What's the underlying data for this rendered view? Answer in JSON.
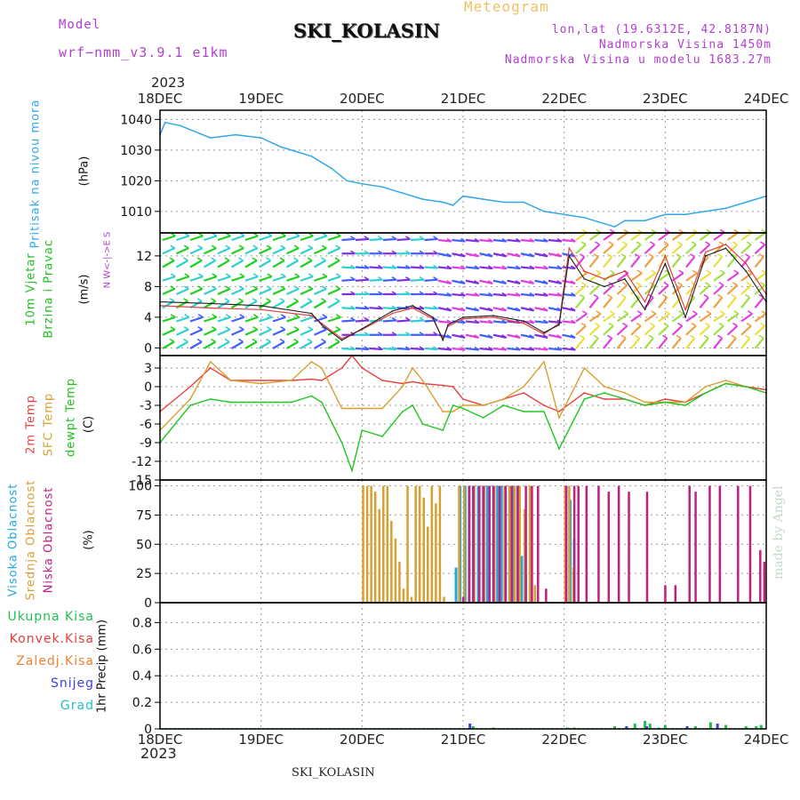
{
  "header": {
    "model_label": "Model",
    "model_name": "wrf−nmm_v3.9.1  e1km",
    "station": "SKI_KOLASIN",
    "meteogram": "Meteogram",
    "lonlat": "lon,lat (19.6312E, 42.8187N)",
    "altitude": "Nadmorska Visina 1450m",
    "model_altitude": "Nadmorska Visina u modelu 1683.27m"
  },
  "footer": {
    "station": "SKI_KOLASIN",
    "made_by": "made by Angel"
  },
  "time_axis": {
    "year": "2023",
    "ticks": [
      "18DEC",
      "19DEC",
      "20DEC",
      "21DEC",
      "22DEC",
      "23DEC",
      "24DEC"
    ]
  },
  "colors": {
    "pressure": "#30a8e8",
    "temp2m": "#e84040",
    "sfc_temp": "#d8a030",
    "dewpt": "#20c820",
    "cloud_high": "#20a8e0",
    "cloud_mid": "#d8a030",
    "cloud_low": "#c02080",
    "wind_speed": "#202020",
    "wind_gust": "#e04040",
    "precip_total": "#20c050",
    "precip_conv": "#e04040",
    "precip_frz": "#f08030",
    "precip_snow": "#4040e0",
    "precip_graupel": "#20c0c0"
  },
  "panels": {
    "pressure": {
      "label": "Pritisak na nivou mora",
      "unit": "(hPa)"
    },
    "wind": {
      "label1": "10m Vjetar",
      "label2": "Brzina i Pravac",
      "unit": "(m/s)",
      "compass": "N  W<-|->E  S"
    },
    "temp": {
      "label1": "2m Temp",
      "label2": "SFC Temp",
      "label3": "dewpt Temp",
      "unit": "(C)"
    },
    "cloud": {
      "label1": "Visoka Oblacnost",
      "label2": "Srednja Oblacnost",
      "label3": "Niska Oblacnost",
      "unit": "(%)"
    },
    "precip": {
      "label": "1hr Precip (mm)",
      "legend": [
        "Ukupna Kisa",
        "Konvek.Kisa",
        "Zaledj.Kisa",
        "Snijeg",
        "Grad"
      ]
    }
  },
  "chart_data": [
    {
      "type": "line",
      "title": "Pritisak na nivou mora",
      "ylabel": "(hPa)",
      "ylim": [
        1003,
        1043
      ],
      "yticks": [
        1010,
        1020,
        1030,
        1040
      ],
      "x_days": [
        0,
        0.05,
        0.2,
        0.5,
        0.75,
        1.0,
        1.2,
        1.5,
        1.7,
        1.85,
        2.0,
        2.2,
        2.4,
        2.6,
        2.8,
        2.9,
        3.0,
        3.2,
        3.4,
        3.6,
        3.8,
        4.0,
        4.2,
        4.4,
        4.5,
        4.6,
        4.8,
        5.0,
        5.2,
        5.4,
        5.6,
        5.8,
        6.0
      ],
      "series": [
        {
          "values": [
            1035,
            1039,
            1038,
            1034,
            1035,
            1034,
            1031,
            1028,
            1024,
            1020,
            1019,
            1018,
            1016,
            1014,
            1013,
            1012,
            1015,
            1014,
            1013,
            1013,
            1010,
            1009,
            1008,
            1006,
            1005,
            1007,
            1007,
            1009,
            1009,
            1010,
            1011,
            1013,
            1015
          ]
        }
      ]
    },
    {
      "type": "line",
      "title": "10m Vjetar",
      "ylabel": "(m/s)",
      "ylim": [
        -1,
        15
      ],
      "yticks": [
        0,
        4,
        8,
        12
      ],
      "x_days": [
        0,
        0.5,
        1.0,
        1.5,
        1.6,
        1.8,
        2.0,
        2.3,
        2.5,
        2.7,
        2.8,
        2.85,
        3.0,
        3.3,
        3.6,
        3.8,
        3.95,
        4.05,
        4.2,
        4.4,
        4.6,
        4.8,
        5.0,
        5.2,
        5.4,
        5.6,
        5.8,
        6.0
      ],
      "series": [
        {
          "values": [
            6,
            5.8,
            5.5,
            4.5,
            3,
            1,
            2.5,
            4.8,
            5.5,
            4,
            1,
            3,
            4,
            4.2,
            3.5,
            2,
            3,
            12,
            9,
            8,
            9,
            5,
            11,
            4,
            12,
            13,
            10,
            6
          ]
        },
        {
          "values": [
            5.5,
            5.2,
            5.0,
            4.2,
            3.2,
            1.2,
            2.4,
            4.5,
            5.2,
            3.8,
            1.2,
            2.8,
            3.8,
            4.0,
            3.2,
            1.8,
            3.2,
            13,
            10,
            9,
            10,
            6,
            12,
            5,
            12.5,
            13.5,
            11,
            7
          ]
        }
      ]
    },
    {
      "type": "line",
      "title": "Temp",
      "ylabel": "(C)",
      "ylim": [
        -15,
        5
      ],
      "yticks": [
        3,
        0,
        -3,
        -6,
        -9,
        -12,
        -15
      ],
      "x_days": [
        0,
        0.3,
        0.5,
        0.7,
        1.0,
        1.3,
        1.5,
        1.6,
        1.8,
        1.9,
        2.0,
        2.2,
        2.4,
        2.5,
        2.6,
        2.8,
        2.9,
        3.0,
        3.2,
        3.4,
        3.6,
        3.8,
        3.95,
        4.2,
        4.4,
        4.6,
        4.8,
        5.0,
        5.2,
        5.4,
        5.6,
        5.8,
        6.0
      ],
      "series": [
        {
          "name": "2m Temp",
          "values": [
            -4,
            0,
            3,
            1,
            1,
            1,
            1.2,
            1,
            3,
            5,
            3,
            1,
            0.5,
            0.8,
            0.5,
            0.2,
            0,
            -2,
            -3,
            -2,
            -1,
            -3,
            -4,
            -1,
            -2,
            -2,
            -3,
            -2,
            -2.5,
            -1,
            0.5,
            0,
            -0.5
          ]
        },
        {
          "name": "SFC Temp",
          "values": [
            -7,
            -2,
            4,
            1,
            0.5,
            1,
            4,
            3,
            -3.5,
            -3.5,
            -3.5,
            -3.5,
            0,
            3,
            1,
            -4,
            -4,
            -3,
            -3,
            -2,
            0,
            4,
            -5,
            3,
            0,
            -1,
            -2.5,
            -2.5,
            -2.5,
            0,
            1,
            0,
            -1
          ]
        },
        {
          "name": "dewpt Temp",
          "values": [
            -9,
            -3,
            -2,
            -2.5,
            -2.5,
            -2.5,
            -1.5,
            -2.5,
            -9,
            -13.5,
            -7,
            -8,
            -4,
            -3,
            -6,
            -7,
            -3,
            -3.5,
            -5,
            -3,
            -4,
            -4,
            -10,
            -2,
            -1,
            -2,
            -3,
            -2.5,
            -3,
            -1,
            0.5,
            0,
            -1
          ]
        }
      ]
    },
    {
      "type": "bar",
      "title": "Oblacnost",
      "ylabel": "(%)",
      "ylim": [
        0,
        105
      ],
      "yticks": [
        0,
        25,
        50,
        75,
        100
      ],
      "series": [
        {
          "name": "Visoka Oblacnost",
          "x_days": [
            2.93,
            2.97,
            3.02,
            3.06,
            3.1,
            3.15,
            3.2,
            3.24,
            3.3,
            3.34,
            3.38,
            3.42,
            3.46,
            3.5,
            3.54,
            3.58,
            3.62,
            4.02,
            4.06,
            4.1
          ],
          "values": [
            30,
            100,
            100,
            100,
            100,
            100,
            100,
            100,
            100,
            100,
            100,
            95,
            100,
            100,
            100,
            40,
            25,
            100,
            88,
            55
          ]
        },
        {
          "name": "Srednja Oblacnost",
          "x_days": [
            2.0,
            2.04,
            2.08,
            2.12,
            2.16,
            2.2,
            2.24,
            2.28,
            2.32,
            2.36,
            2.4,
            2.44,
            2.48,
            2.52,
            2.56,
            2.6,
            2.64,
            2.68,
            2.72,
            2.76,
            2.8,
            2.95,
            3.0,
            3.05,
            3.1,
            3.15,
            3.2,
            3.25,
            3.3,
            3.35,
            3.4,
            3.45,
            3.5,
            3.55,
            3.6,
            3.65,
            3.7,
            4.0,
            4.04,
            4.08
          ],
          "values": [
            100,
            100,
            100,
            95,
            80,
            100,
            100,
            70,
            55,
            35,
            12,
            100,
            5,
            100,
            100,
            90,
            65,
            100,
            85,
            100,
            5,
            100,
            100,
            100,
            100,
            100,
            100,
            100,
            100,
            100,
            100,
            100,
            100,
            100,
            80,
            100,
            15,
            100,
            100,
            30
          ]
        },
        {
          "name": "Niska Oblacnost",
          "x_days": [
            2.98,
            3.04,
            3.08,
            3.14,
            3.18,
            3.24,
            3.28,
            3.34,
            3.4,
            3.46,
            3.52,
            3.6,
            3.66,
            3.72,
            3.8,
            4.0,
            4.08,
            4.12,
            4.2,
            4.32,
            4.42,
            4.52,
            4.62,
            4.8,
            4.98,
            5.08,
            5.22,
            5.28,
            5.42,
            5.52,
            5.7,
            5.82,
            5.92,
            5.96
          ],
          "values": [
            5,
            100,
            100,
            100,
            100,
            100,
            100,
            100,
            100,
            100,
            100,
            100,
            100,
            100,
            12,
            100,
            100,
            100,
            100,
            100,
            95,
            100,
            95,
            95,
            15,
            15,
            100,
            95,
            100,
            100,
            100,
            100,
            45,
            35
          ]
        }
      ]
    },
    {
      "type": "bar",
      "title": "1hr Precip",
      "ylabel": "(mm)",
      "ylim": [
        0,
        0.95
      ],
      "yticks": [
        0,
        0.2,
        0.4,
        0.6,
        0.8
      ],
      "series": [
        {
          "name": "Ukupna Kisa",
          "x_days": [
            3.1,
            3.3,
            4.1,
            4.5,
            4.7,
            4.8,
            4.85,
            5.0,
            5.3,
            5.45,
            5.6,
            5.8,
            5.9,
            5.95
          ],
          "values": [
            0.02,
            0.01,
            0.01,
            0.02,
            0.04,
            0.06,
            0.04,
            0.03,
            0.02,
            0.05,
            0.03,
            0.02,
            0.02,
            0.03
          ]
        },
        {
          "name": "Snijeg",
          "x_days": [
            3.05,
            4.6,
            4.8,
            5.2,
            5.5
          ],
          "values": [
            0.04,
            0.02,
            0.02,
            0.02,
            0.04
          ]
        },
        {
          "name": "Grad",
          "x_days": [
            4.0,
            4.9
          ],
          "values": [
            0.01,
            0.01
          ]
        }
      ]
    }
  ]
}
